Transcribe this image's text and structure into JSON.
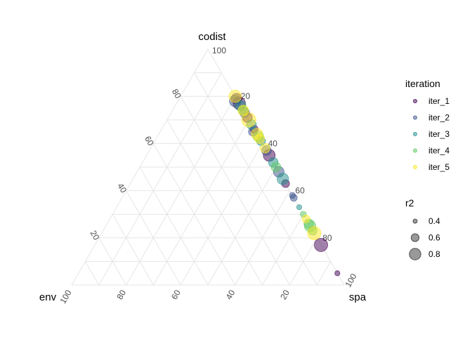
{
  "chart_data": {
    "type": "scatter",
    "subtype": "ternary",
    "axes": {
      "top": "codist",
      "left": "env",
      "right": "spa"
    },
    "axis_range": [
      0,
      100
    ],
    "grid": true,
    "ticks": {
      "codist": [
        "20",
        "40",
        "60",
        "80",
        "100"
      ],
      "env": [
        "20",
        "40",
        "60",
        "80",
        "100"
      ],
      "spa": [
        "20",
        "40",
        "60",
        "80",
        "100"
      ]
    },
    "legend_position": "right",
    "color_legend": {
      "title": "iteration",
      "items": [
        {
          "label": "iter_1",
          "color": "#440154"
        },
        {
          "label": "iter_2",
          "color": "#3b528b"
        },
        {
          "label": "iter_3",
          "color": "#21908c"
        },
        {
          "label": "iter_4",
          "color": "#5dc963"
        },
        {
          "label": "iter_5",
          "color": "#fde725"
        }
      ]
    },
    "size_legend": {
      "title": "r2",
      "items": [
        {
          "label": "0.4",
          "value": 0.4
        },
        {
          "label": "0.6",
          "value": 0.6
        },
        {
          "label": "0.8",
          "value": 0.8
        }
      ]
    },
    "point_opacity": 0.5,
    "series": [
      {
        "name": "iter_1",
        "points": [
          {
            "codist": 79,
            "env": 0,
            "spa": 21,
            "r2": 0.75
          },
          {
            "codist": 77,
            "env": 0,
            "spa": 23,
            "r2": 0.85
          },
          {
            "codist": 71,
            "env": 0,
            "spa": 29,
            "r2": 0.7
          },
          {
            "codist": 66,
            "env": 0,
            "spa": 34,
            "r2": 0.6
          },
          {
            "codist": 55,
            "env": 0,
            "spa": 45,
            "r2": 0.82
          },
          {
            "codist": 43,
            "env": 0,
            "spa": 57,
            "r2": 0.6
          },
          {
            "codist": 17,
            "env": 0,
            "spa": 83,
            "r2": 0.9
          },
          {
            "codist": 5,
            "env": 0,
            "spa": 95,
            "r2": 0.45
          }
        ]
      },
      {
        "name": "iter_2",
        "points": [
          {
            "codist": 78,
            "env": 1,
            "spa": 21,
            "r2": 0.8
          },
          {
            "codist": 73,
            "env": 0,
            "spa": 27,
            "r2": 0.7
          },
          {
            "codist": 65,
            "env": 1,
            "spa": 34,
            "r2": 0.65
          },
          {
            "codist": 57,
            "env": 0,
            "spa": 43,
            "r2": 0.7
          },
          {
            "codist": 48,
            "env": 0,
            "spa": 52,
            "r2": 0.75
          },
          {
            "codist": 38,
            "env": 0,
            "spa": 62,
            "r2": 0.5
          },
          {
            "codist": 37,
            "env": 0,
            "spa": 63,
            "r2": 0.55
          }
        ]
      },
      {
        "name": "iter_3",
        "points": [
          {
            "codist": 76,
            "env": 0,
            "spa": 24,
            "r2": 0.75
          },
          {
            "codist": 68,
            "env": 0,
            "spa": 32,
            "r2": 0.7
          },
          {
            "codist": 61,
            "env": 0,
            "spa": 39,
            "r2": 0.65
          },
          {
            "codist": 52,
            "env": 0,
            "spa": 48,
            "r2": 0.7
          },
          {
            "codist": 45,
            "env": 0,
            "spa": 55,
            "r2": 0.8
          },
          {
            "codist": 33,
            "env": 0,
            "spa": 67,
            "r2": 0.45
          }
        ]
      },
      {
        "name": "iter_4",
        "points": [
          {
            "codist": 74,
            "env": 0,
            "spa": 26,
            "r2": 0.7
          },
          {
            "codist": 63,
            "env": 0,
            "spa": 37,
            "r2": 0.75
          },
          {
            "codist": 50,
            "env": 0,
            "spa": 50,
            "r2": 0.7
          },
          {
            "codist": 30,
            "env": 0,
            "spa": 70,
            "r2": 0.5
          },
          {
            "codist": 26,
            "env": 0,
            "spa": 74,
            "r2": 0.7
          },
          {
            "codist": 25,
            "env": 0,
            "spa": 75,
            "r2": 0.8
          },
          {
            "codist": 23,
            "env": 0,
            "spa": 77,
            "r2": 0.65
          }
        ]
      },
      {
        "name": "iter_5",
        "points": [
          {
            "codist": 80,
            "env": 0,
            "spa": 20,
            "r2": 0.85
          },
          {
            "codist": 74,
            "env": 0,
            "spa": 26,
            "r2": 0.75
          },
          {
            "codist": 70,
            "env": 0,
            "spa": 30,
            "r2": 0.95
          },
          {
            "codist": 64,
            "env": 0,
            "spa": 36,
            "r2": 0.8
          },
          {
            "codist": 62,
            "env": 0,
            "spa": 38,
            "r2": 0.7
          },
          {
            "codist": 58,
            "env": 0,
            "spa": 42,
            "r2": 0.7
          },
          {
            "codist": 28,
            "env": 0,
            "spa": 72,
            "r2": 0.6
          },
          {
            "codist": 22,
            "env": 0,
            "spa": 78,
            "r2": 0.9
          }
        ]
      }
    ]
  }
}
